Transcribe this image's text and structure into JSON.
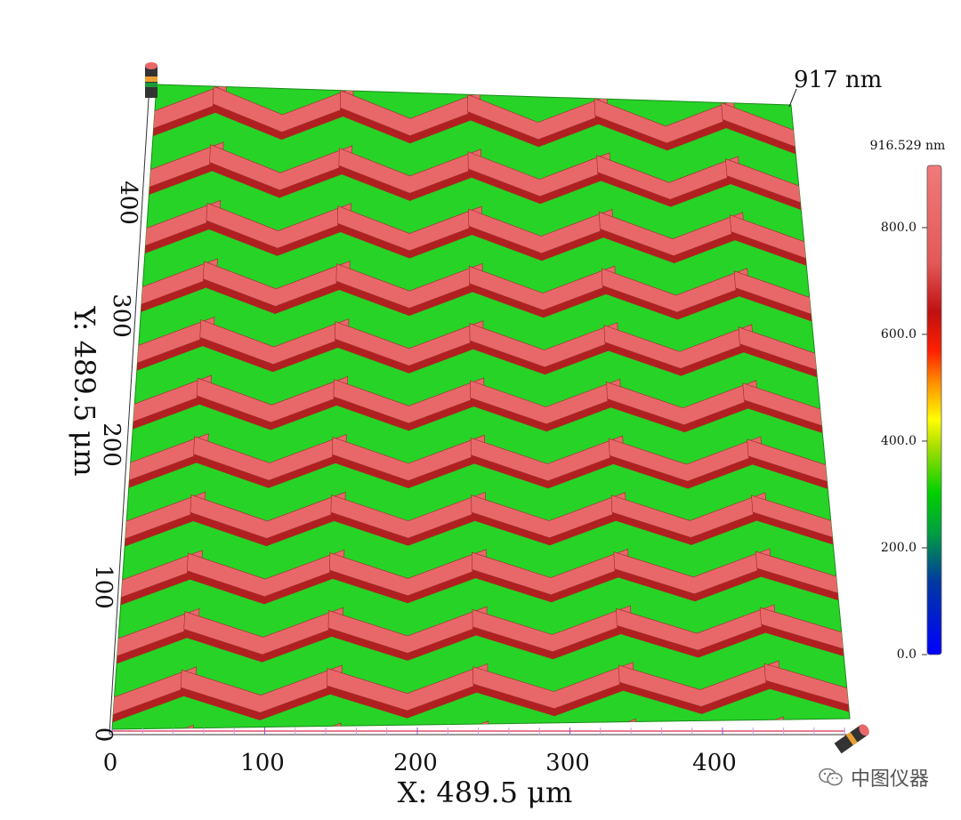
{
  "surface": {
    "peak_label": "917 nm",
    "x_axis_title": "X: 489.5 μm",
    "y_axis_title": "Y: 489.5 μm",
    "x_ticks": [
      "0",
      "100",
      "200",
      "300",
      "400"
    ],
    "y_ticks": [
      "0",
      "100",
      "200",
      "300",
      "400"
    ],
    "x_range_um": [
      0,
      489.5
    ],
    "y_range_um": [
      0,
      489.5
    ],
    "pattern": "chevron-ridges",
    "ridge_color": "#e8686a",
    "base_color": "#22d422"
  },
  "colorbar": {
    "max_label": "916.529 nm",
    "tick_labels": [
      "800.0",
      "600.0",
      "400.0",
      "200.0",
      "0.0"
    ],
    "tick_values_nm": [
      800,
      600,
      400,
      200,
      0
    ],
    "range_nm": [
      0,
      916.529
    ],
    "colors": [
      "#0000ff",
      "#00d000",
      "#ffff00",
      "#ff0000",
      "#e8686a"
    ]
  },
  "watermark": {
    "text": "中图仪器",
    "icon": "wechat-icon"
  }
}
